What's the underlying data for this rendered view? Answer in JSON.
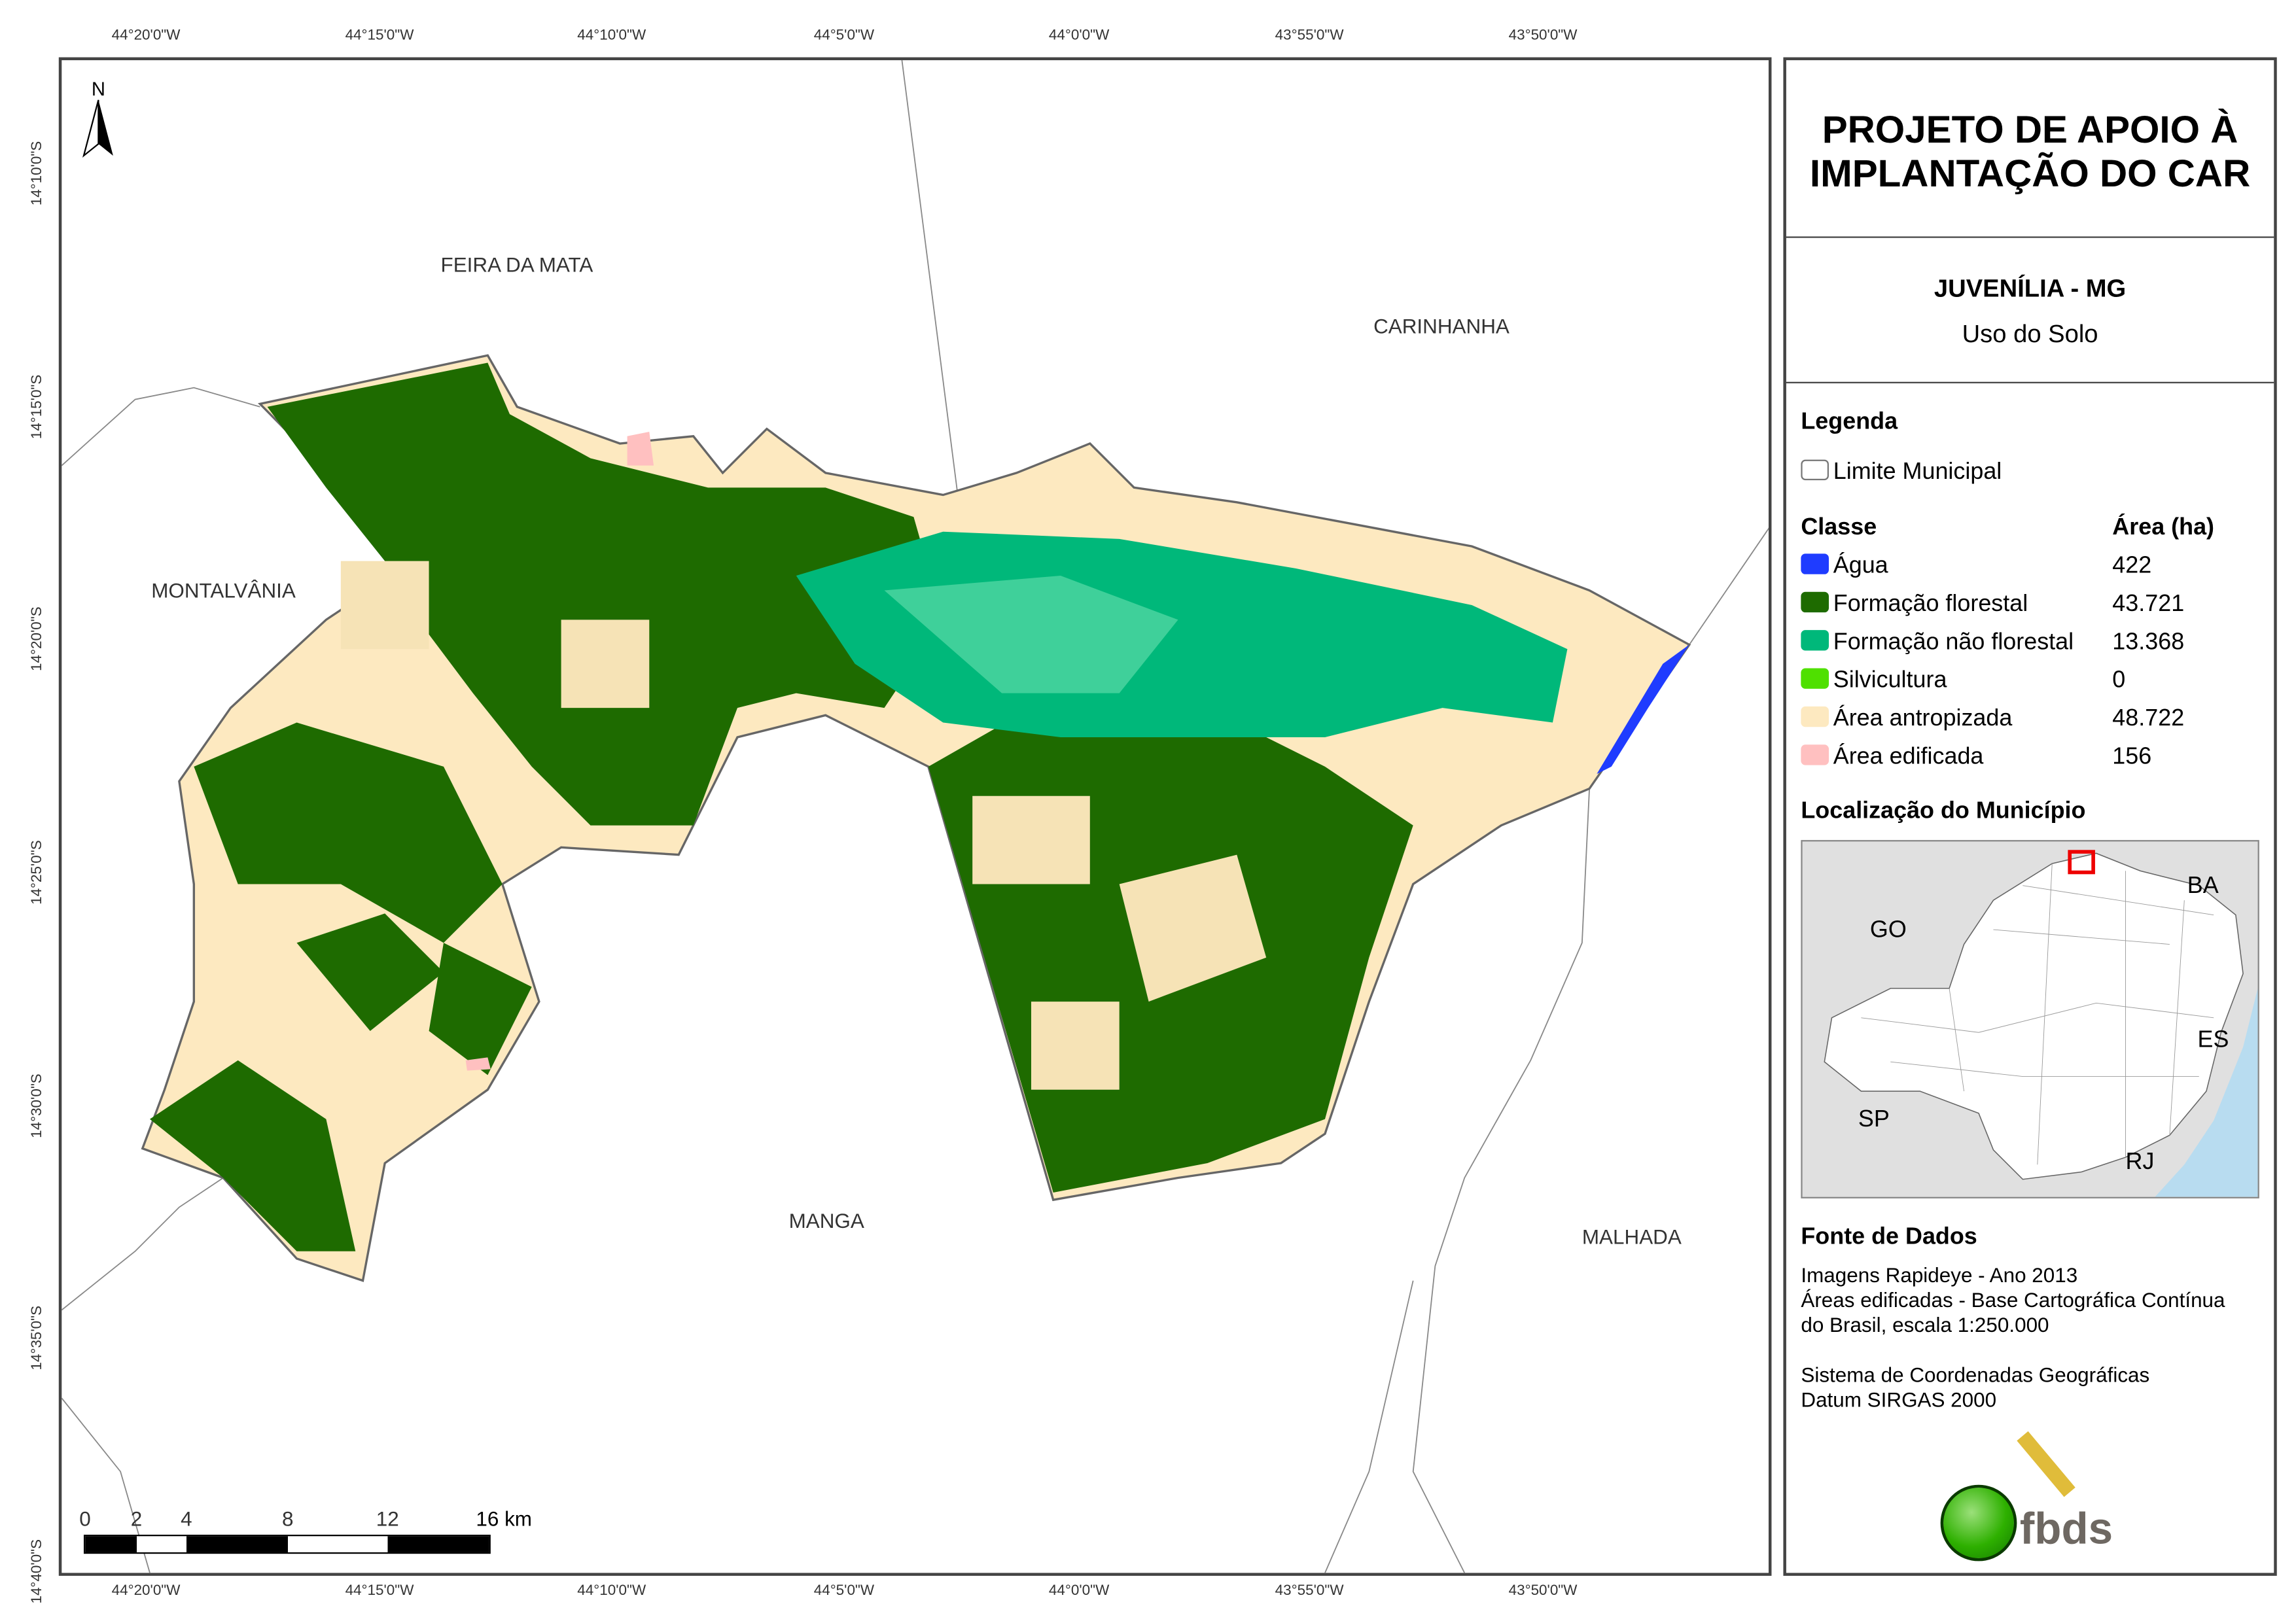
{
  "grid": {
    "lon_labels": [
      "44°20'0\"W",
      "44°15'0\"W",
      "44°10'0\"W",
      "44°5'0\"W",
      "44°0'0\"W",
      "43°55'0\"W",
      "43°50'0\"W"
    ],
    "lat_labels": [
      "14°10'0\"S",
      "14°15'0\"S",
      "14°20'0\"S",
      "14°25'0\"S",
      "14°30'0\"S",
      "14°35'0\"S",
      "14°40'0\"S"
    ]
  },
  "map": {
    "north_arrow": "N",
    "neighbors": [
      "FEIRA DA MATA",
      "CARINHANHA",
      "MONTALVÂNIA",
      "MANGA",
      "MALHADA"
    ],
    "scale_bar": {
      "labels": [
        "0",
        "2",
        "4",
        "8",
        "12",
        "16 km"
      ]
    }
  },
  "panel": {
    "title_line1": "PROJETO DE APOIO À",
    "title_line2": "IMPLANTAÇÃO DO CAR",
    "municipality": "JUVENÍLIA - MG",
    "subtitle": "Uso do Solo",
    "legend_heading": "Legenda",
    "boundary_label": "Limite Municipal",
    "class_header": "Classe",
    "area_header": "Área (ha)",
    "classes": [
      {
        "label": "Água",
        "area": "422",
        "color": "#1f3cff"
      },
      {
        "label": "Formação florestal",
        "area": "43.721",
        "color": "#1e6b00"
      },
      {
        "label": "Formação não florestal",
        "area": "13.368",
        "color": "#00b87a"
      },
      {
        "label": "Silvicultura",
        "area": "0",
        "color": "#4fe000"
      },
      {
        "label": "Área antropizada",
        "area": "48.722",
        "color": "#fde9c0"
      },
      {
        "label": "Área edificada",
        "area": "156",
        "color": "#ffc0c0"
      }
    ],
    "location_heading": "Localização do Município",
    "location_labels": [
      "BA",
      "GO",
      "ES",
      "SP",
      "RJ"
    ],
    "source_heading": "Fonte de Dados",
    "source_lines": [
      "Imagens Rapideye - Ano 2013",
      "Áreas edificadas - Base Cartográfica Contínua",
      "do Brasil, escala 1:250.000",
      "",
      "Sistema de Coordenadas Geográficas",
      "Datum SIRGAS 2000"
    ],
    "logo_text": "fbds"
  }
}
